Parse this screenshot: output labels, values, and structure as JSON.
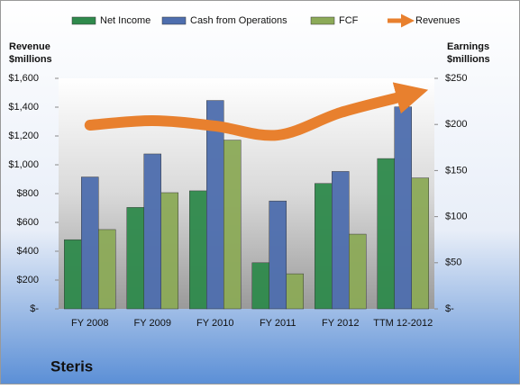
{
  "chart_data": {
    "type": "bar",
    "title": "Steris",
    "y_label": [
      "Revenue",
      "$millions"
    ],
    "y2_label": [
      "Earnings",
      "$millions"
    ],
    "categories": [
      "FY 2008",
      "FY 2009",
      "FY 2010",
      "FY 2011",
      "FY 2012",
      "TTM 12-2012"
    ],
    "series": [
      {
        "name": "Net Income",
        "color": "#2f8a4c",
        "axis": "y2",
        "values": [
          75,
          110,
          128,
          50,
          136,
          163
        ]
      },
      {
        "name": "Cash from Operations",
        "color": "#4e6eae",
        "axis": "y2",
        "values": [
          143,
          168,
          226,
          117,
          149,
          219
        ]
      },
      {
        "name": "FCF",
        "color": "#8caa58",
        "axis": "y2",
        "values": [
          86,
          126,
          183,
          38,
          81,
          142
        ]
      },
      {
        "name": "Revenues",
        "color": "#e8802e",
        "type": "line",
        "values": [
          1275,
          1306,
          1269,
          1206,
          1362,
          1475
        ]
      }
    ],
    "ylim": [
      0,
      1600
    ],
    "yticks": [
      {
        "value": 0,
        "label": "$-"
      },
      {
        "value": 200,
        "label": "$200"
      },
      {
        "value": 400,
        "label": "$400"
      },
      {
        "value": 600,
        "label": "$600"
      },
      {
        "value": 800,
        "label": "$800"
      },
      {
        "value": 1000,
        "label": "$1,000"
      },
      {
        "value": 1200,
        "label": "$1,200"
      },
      {
        "value": 1400,
        "label": "$1,400"
      },
      {
        "value": 1600,
        "label": "$1,600"
      }
    ],
    "y2lim": [
      0,
      250
    ],
    "y2ticks": [
      {
        "value": 0,
        "label": "$-"
      },
      {
        "value": 50,
        "label": "$50"
      },
      {
        "value": 100,
        "label": "$100"
      },
      {
        "value": 150,
        "label": "$150"
      },
      {
        "value": 200,
        "label": "$200"
      },
      {
        "value": 250,
        "label": "$250"
      }
    ],
    "grid": false,
    "legend": "top"
  }
}
